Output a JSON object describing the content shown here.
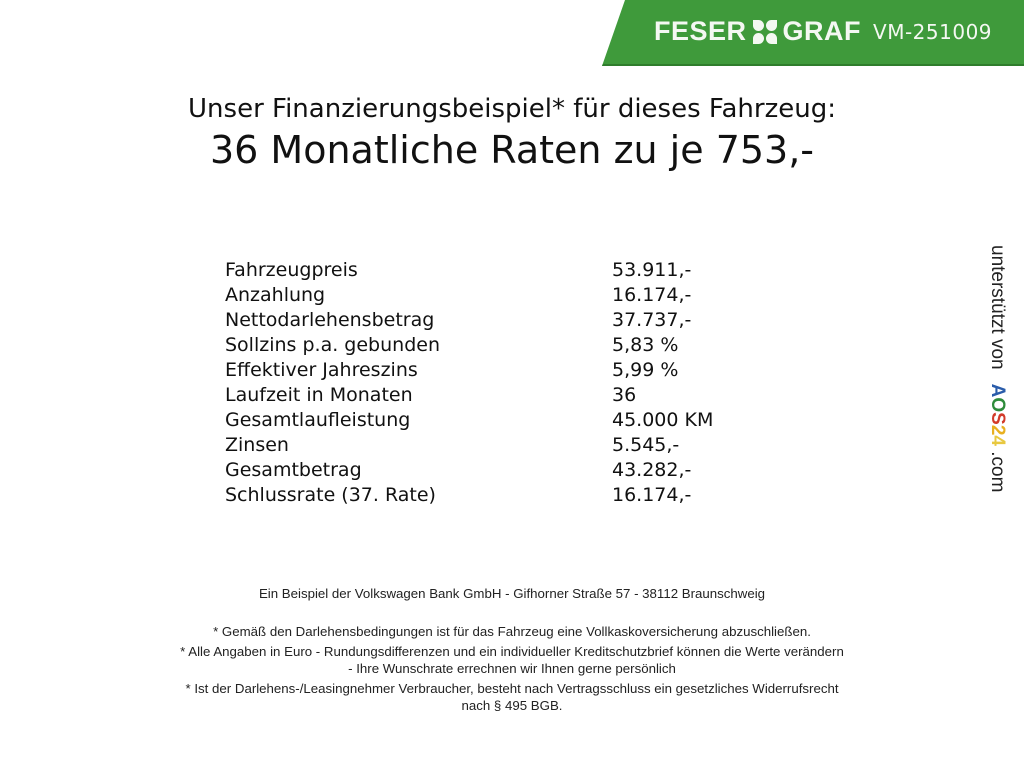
{
  "header": {
    "brand": "FESER",
    "brand2": "GRAF",
    "code": "VM-251009",
    "brand_color": "#3f9a3b"
  },
  "title": {
    "line1": "Unser Finanzierungsbeispiel* für dieses Fahrzeug:",
    "line2": "36 Monatliche Raten zu je 753,-"
  },
  "rows": [
    {
      "label": "Fahrzeugpreis",
      "value": "53.911,-"
    },
    {
      "label": "Anzahlung",
      "value": "16.174,-"
    },
    {
      "label": "Nettodarlehensbetrag",
      "value": "37.737,-"
    },
    {
      "label": "Sollzins p.a. gebunden",
      "value": "5,83 %"
    },
    {
      "label": "Effektiver Jahreszins",
      "value": "5,99 %"
    },
    {
      "label": "Laufzeit in Monaten",
      "value": "36"
    },
    {
      "label": "Gesamtlaufleistung",
      "value": "45.000 KM"
    },
    {
      "label": "Zinsen",
      "value": "5.545,-"
    },
    {
      "label": "Gesamtbetrag",
      "value": "43.282,-"
    },
    {
      "label": "Schlussrate (37. Rate)",
      "value": "16.174,-"
    }
  ],
  "side": {
    "text": "unterstützt von",
    "logo": "AOS24",
    "suffix": ".com"
  },
  "footer": {
    "bank": "Ein Beispiel der Volkswagen Bank GmbH - Gifhorner Straße 57 - 38112 Braunschweig",
    "note1": "* Gemäß den Darlehensbedingungen ist für das Fahrzeug eine Vollkaskoversicherung abzuschließen.",
    "note2a": "* Alle Angaben in Euro - Rundungsdifferenzen und ein individueller Kreditschutzbrief können die Werte verändern",
    "note2b": "- Ihre Wunschrate errechnen wir Ihnen gerne persönlich",
    "note3a": "* Ist der Darlehens-/Leasingnehmer Verbraucher, besteht nach Vertragsschluss ein gesetzliches Widerrufsrecht",
    "note3b": "nach § 495 BGB."
  }
}
